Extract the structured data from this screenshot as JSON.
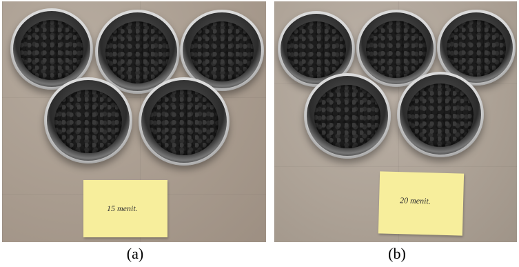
{
  "panels": [
    {
      "label": "(a)",
      "note_text": "15 menit.",
      "bowl_count": 5
    },
    {
      "label": "(b)",
      "note_text": "20 menit.",
      "bowl_count": 5
    }
  ]
}
